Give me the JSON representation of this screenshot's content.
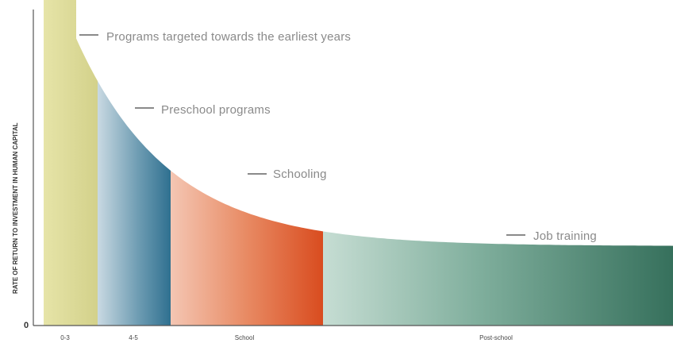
{
  "chart_data": {
    "type": "area",
    "title": "",
    "xlabel": "",
    "ylabel": "RATE OF RETURN TO INVESTMENT IN HUMAN CAPITAL",
    "y_origin_label": "0",
    "segments": [
      {
        "tick": "0-3",
        "annotation": "Programs targeted towards the earliest years",
        "color": "#d8d68c"
      },
      {
        "tick": "4-5",
        "annotation": "Preschool programs",
        "color": "#3e7e98"
      },
      {
        "tick": "School",
        "annotation": "Schooling",
        "color": "#d9532a"
      },
      {
        "tick": "Post-school",
        "annotation": "Job training",
        "color": "#3e7a66"
      }
    ],
    "curve": "decreasing convex return with age",
    "grid": false,
    "legend": "none"
  }
}
